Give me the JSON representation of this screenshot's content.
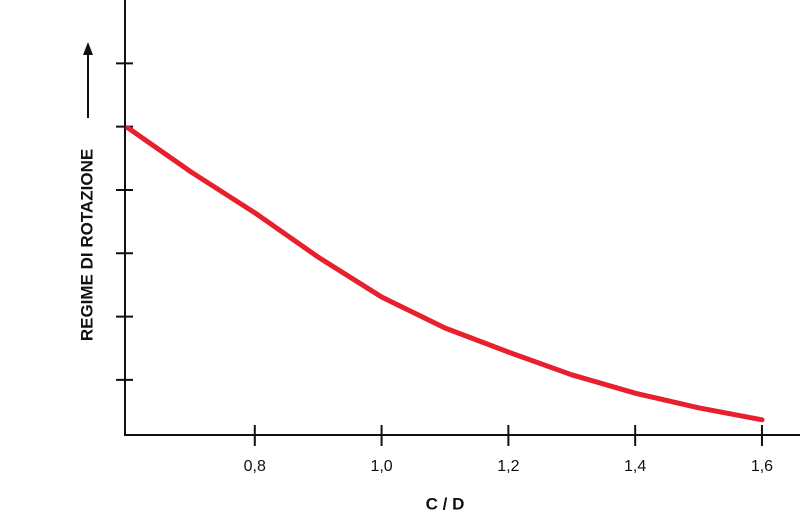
{
  "chart_data": {
    "type": "line",
    "xlabel": "C / D",
    "ylabel": "REGIME DI ROTAZIONE",
    "x": [
      0.6,
      0.7,
      0.8,
      0.9,
      1.0,
      1.1,
      1.2,
      1.3,
      1.4,
      1.5,
      1.6
    ],
    "series": [
      {
        "color": "#e8202e",
        "values": [
          4.98,
          4.28,
          3.64,
          2.94,
          2.31,
          1.82,
          1.44,
          1.08,
          0.79,
          0.56,
          0.37
        ]
      }
    ],
    "xlim": [
      0.6,
      1.66
    ],
    "xticks": [
      {
        "value": 0.8,
        "label": "0,8"
      },
      {
        "value": 1.0,
        "label": "1,0"
      },
      {
        "value": 1.2,
        "label": "1,2"
      },
      {
        "value": 1.4,
        "label": "1,4"
      },
      {
        "value": 1.6,
        "label": "1,6"
      }
    ],
    "ylim": [
      0.13,
      7
    ],
    "yticks": [
      1,
      2,
      3,
      4,
      5,
      6
    ],
    "ytick_labels": false,
    "grid": false
  }
}
